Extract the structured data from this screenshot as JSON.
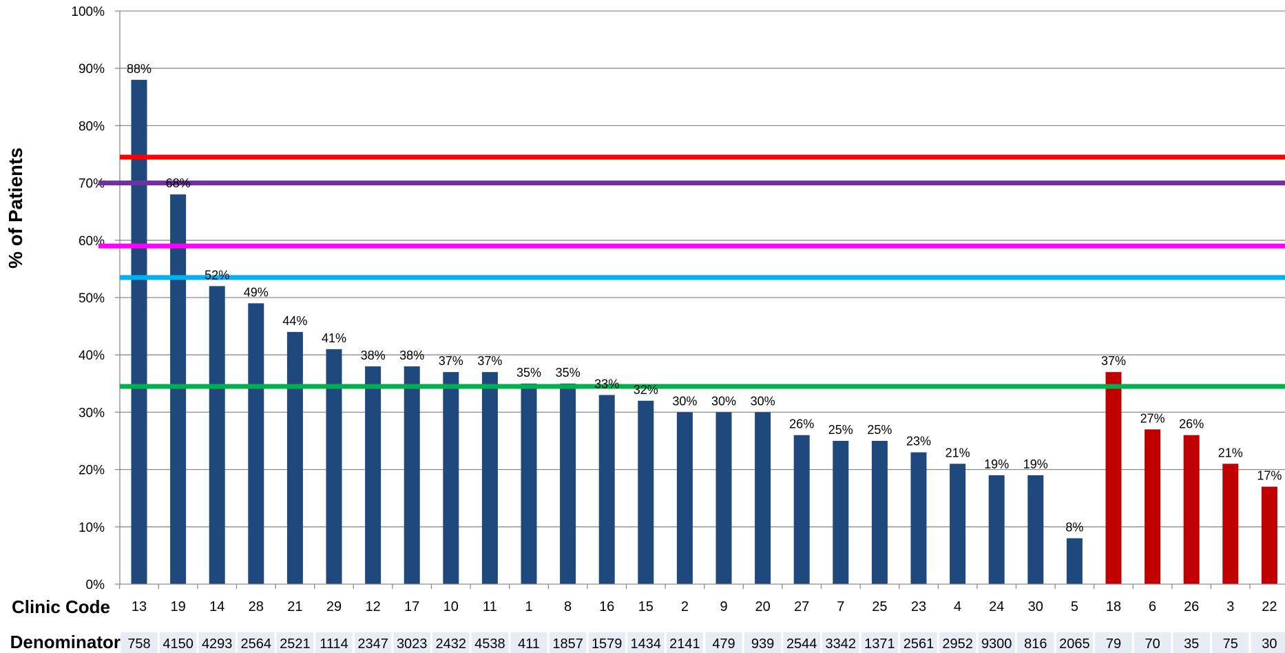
{
  "chart_data": {
    "type": "bar",
    "ylabel": "% of Patients",
    "ylim": [
      0,
      100
    ],
    "y_ticks": [
      "0%",
      "10%",
      "20%",
      "30%",
      "40%",
      "50%",
      "60%",
      "70%",
      "80%",
      "90%",
      "100%"
    ],
    "grid": true,
    "row_labels": {
      "categories": "Clinic Code",
      "denominator": "Denominator"
    },
    "categories": [
      "13",
      "19",
      "14",
      "28",
      "21",
      "29",
      "12",
      "17",
      "10",
      "11",
      "1",
      "8",
      "16",
      "15",
      "2",
      "9",
      "20",
      "27",
      "7",
      "25",
      "23",
      "4",
      "24",
      "30",
      "5",
      "18",
      "6",
      "26",
      "3",
      "22"
    ],
    "values": [
      88,
      68,
      52,
      49,
      44,
      41,
      38,
      38,
      37,
      37,
      35,
      35,
      33,
      32,
      30,
      30,
      30,
      26,
      25,
      25,
      23,
      21,
      19,
      19,
      8,
      37,
      27,
      26,
      21,
      17
    ],
    "value_labels": [
      "88%",
      "68%",
      "52%",
      "49%",
      "44%",
      "41%",
      "38%",
      "38%",
      "37%",
      "37%",
      "35%",
      "35%",
      "33%",
      "32%",
      "30%",
      "30%",
      "30%",
      "26%",
      "25%",
      "25%",
      "23%",
      "21%",
      "19%",
      "19%",
      "8%",
      "37%",
      "27%",
      "26%",
      "21%",
      "17%"
    ],
    "denominators": [
      "758",
      "4150",
      "4293",
      "2564",
      "2521",
      "1114",
      "2347",
      "3023",
      "2432",
      "4538",
      "411",
      "1857",
      "1579",
      "1434",
      "2141",
      "479",
      "939",
      "2544",
      "3342",
      "1371",
      "2561",
      "2952",
      "9300",
      "816",
      "2065",
      "79",
      "70",
      "35",
      "75",
      "30"
    ],
    "bar_colors": [
      "#1f497d",
      "#1f497d",
      "#1f497d",
      "#1f497d",
      "#1f497d",
      "#1f497d",
      "#1f497d",
      "#1f497d",
      "#1f497d",
      "#1f497d",
      "#1f497d",
      "#1f497d",
      "#1f497d",
      "#1f497d",
      "#1f497d",
      "#1f497d",
      "#1f497d",
      "#1f497d",
      "#1f497d",
      "#1f497d",
      "#1f497d",
      "#1f497d",
      "#1f497d",
      "#1f497d",
      "#1f497d",
      "#c00000",
      "#c00000",
      "#c00000",
      "#c00000",
      "#c00000"
    ],
    "reference_lines": [
      {
        "value": 74.5,
        "color": "#ff0000"
      },
      {
        "value": 70,
        "color": "#7030a0"
      },
      {
        "value": 59,
        "color": "#ff00ff"
      },
      {
        "value": 53.5,
        "color": "#00b0f0"
      },
      {
        "value": 34.5,
        "color": "#00b050"
      }
    ],
    "denominator_cell_color": "#e8edf5"
  }
}
